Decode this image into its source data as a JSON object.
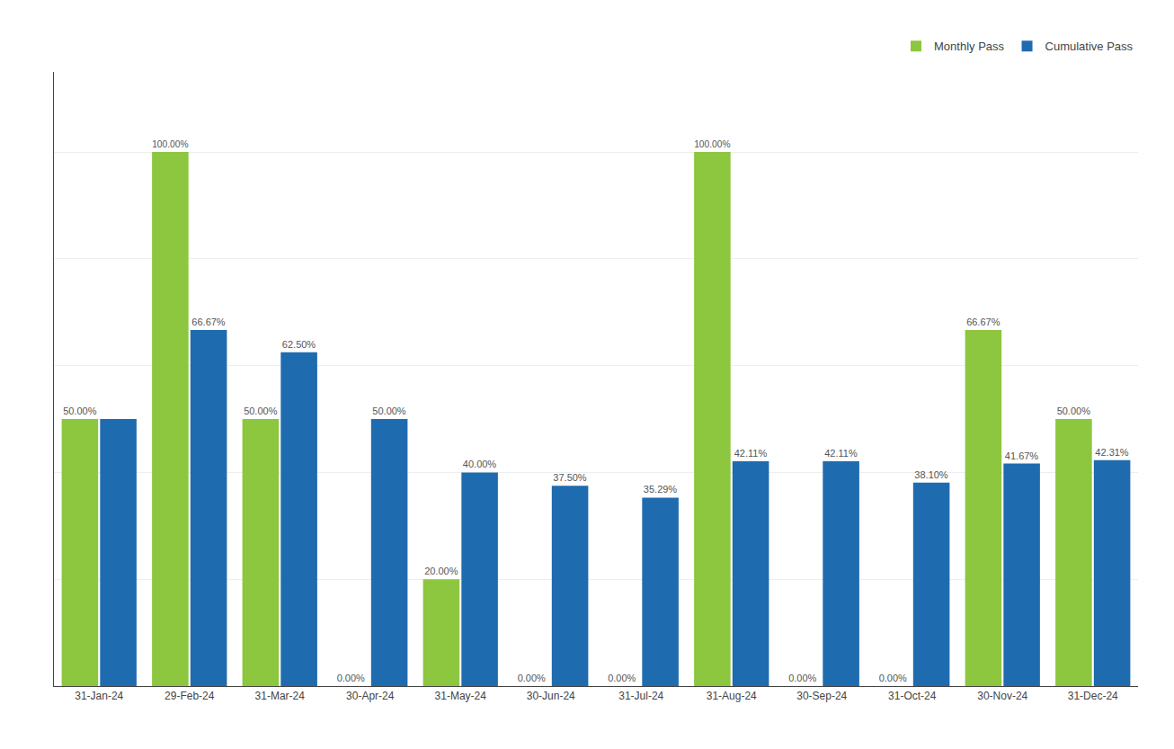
{
  "chart_data": {
    "type": "bar",
    "categories": [
      "31-Jan-24",
      "29-Feb-24",
      "31-Mar-24",
      "30-Apr-24",
      "31-May-24",
      "30-Jun-24",
      "31-Jul-24",
      "31-Aug-24",
      "30-Sep-24",
      "31-Oct-24",
      "30-Nov-24",
      "31-Dec-24"
    ],
    "series": [
      {
        "name": "Monthly Pass",
        "color": "#8DC63F",
        "values": [
          50.0,
          100.0,
          50.0,
          0.0,
          20.0,
          0.0,
          0.0,
          100.0,
          0.0,
          0.0,
          66.67,
          50.0
        ],
        "value_labels": [
          "50.00%",
          "100.00%",
          "50.00%",
          "0.00%",
          "20.00%",
          "0.00%",
          "0.00%",
          "100.00%",
          "0.00%",
          "0.00%",
          "66.67%",
          "50.00%"
        ]
      },
      {
        "name": "Cumulative Pass",
        "color": "#1F6BB0",
        "values": [
          50.0,
          66.67,
          62.5,
          50.0,
          40.0,
          37.5,
          35.29,
          42.11,
          42.11,
          38.1,
          41.67,
          42.31
        ],
        "value_labels": [
          null,
          "66.67%",
          "62.50%",
          "50.00%",
          "40.00%",
          "37.50%",
          "35.29%",
          "42.11%",
          "42.11%",
          "38.10%",
          "41.67%",
          "42.31%"
        ]
      }
    ],
    "ylim": [
      0,
      115
    ],
    "yticks": [
      0,
      20,
      40,
      60,
      80,
      100
    ],
    "grid": true,
    "legend": "upper right",
    "data_labels": true,
    "tick_labels": "x"
  }
}
